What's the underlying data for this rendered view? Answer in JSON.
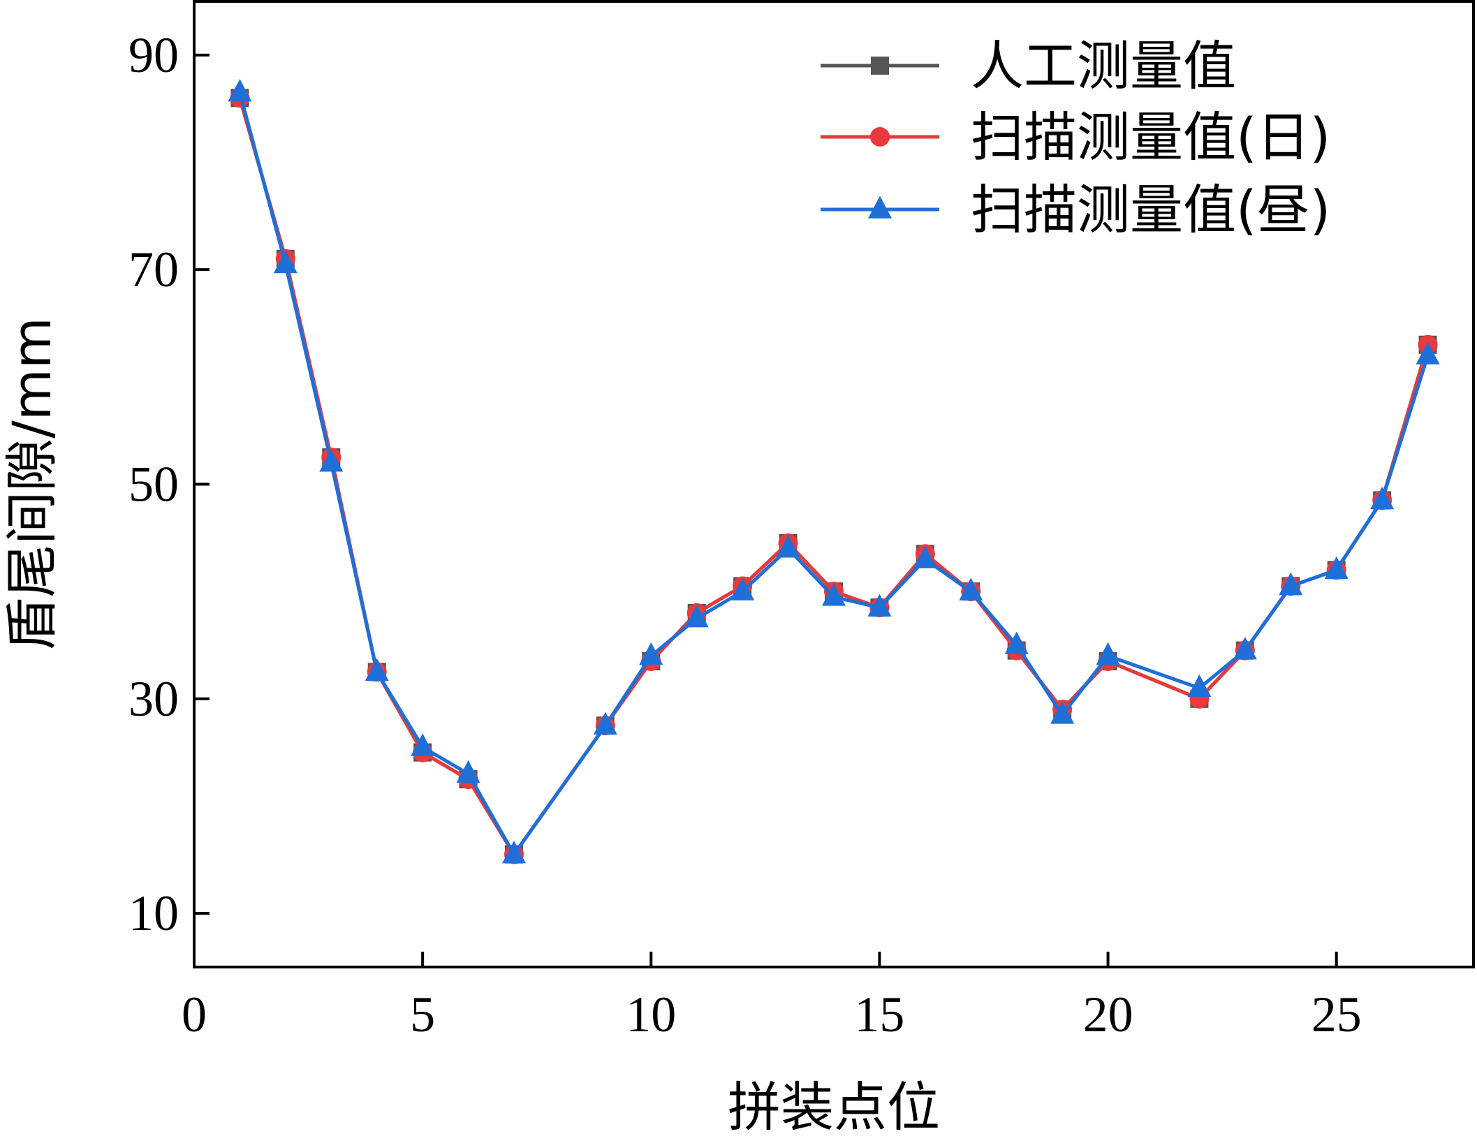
{
  "chart_data": {
    "type": "line",
    "xlabel": "拼装点位",
    "ylabel": "盾尾间隙/mm",
    "xlim": [
      0,
      28
    ],
    "ylim": [
      5,
      95
    ],
    "xticks": [
      0,
      5,
      10,
      15,
      20,
      25
    ],
    "yticks": [
      10,
      30,
      50,
      70,
      90
    ],
    "grid": false,
    "legend_position": "top-right",
    "series": [
      {
        "name": "人工测量值",
        "color": "#555555",
        "marker": "square",
        "points": [
          [
            1,
            86
          ],
          [
            2,
            71
          ],
          [
            3,
            52.5
          ],
          [
            4,
            32.5
          ],
          [
            5,
            25
          ],
          [
            6,
            22.5
          ],
          [
            7,
            15.5
          ],
          [
            9,
            27.5
          ],
          [
            10,
            33.5
          ],
          [
            11,
            38
          ],
          [
            12,
            40.5
          ],
          [
            13,
            44.5
          ],
          [
            14,
            40
          ],
          [
            15,
            38.5
          ],
          [
            16,
            43.5
          ],
          [
            17,
            40
          ],
          [
            18,
            34.5
          ],
          [
            19,
            29
          ],
          [
            20,
            33.5
          ],
          [
            22,
            30
          ],
          [
            23,
            34.5
          ],
          [
            24,
            40.5
          ],
          [
            25,
            42
          ],
          [
            26,
            48.5
          ],
          [
            27,
            63
          ]
        ]
      },
      {
        "name": "扫描测量值(日)",
        "color": "#e8393c",
        "marker": "circle",
        "points": [
          [
            1,
            86
          ],
          [
            2,
            71
          ],
          [
            3,
            52.5
          ],
          [
            4,
            32.5
          ],
          [
            5,
            25
          ],
          [
            6,
            22.5
          ],
          [
            7,
            15.5
          ],
          [
            9,
            27.5
          ],
          [
            10,
            33.5
          ],
          [
            11,
            38
          ],
          [
            12,
            40.5
          ],
          [
            13,
            44.5
          ],
          [
            14,
            40
          ],
          [
            15,
            38.5
          ],
          [
            16,
            43.5
          ],
          [
            17,
            40
          ],
          [
            18,
            34.5
          ],
          [
            19,
            29
          ],
          [
            20,
            33.5
          ],
          [
            22,
            30
          ],
          [
            23,
            34.5
          ],
          [
            24,
            40.5
          ],
          [
            25,
            42
          ],
          [
            26,
            48.5
          ],
          [
            27,
            63
          ]
        ]
      },
      {
        "name": "扫描测量值(昼)",
        "color": "#1f6fd8",
        "marker": "triangle",
        "points": [
          [
            1,
            86.5
          ],
          [
            2,
            70.5
          ],
          [
            3,
            52
          ],
          [
            4,
            32.5
          ],
          [
            5,
            25.5
          ],
          [
            6,
            23
          ],
          [
            7,
            15.5
          ],
          [
            9,
            27.5
          ],
          [
            10,
            34
          ],
          [
            11,
            37.5
          ],
          [
            12,
            40
          ],
          [
            13,
            44
          ],
          [
            14,
            39.5
          ],
          [
            15,
            38.5
          ],
          [
            16,
            43
          ],
          [
            17,
            40
          ],
          [
            18,
            35
          ],
          [
            19,
            28.5
          ],
          [
            20,
            34
          ],
          [
            22,
            31
          ],
          [
            23,
            34.5
          ],
          [
            24,
            40.5
          ],
          [
            25,
            42
          ],
          [
            26,
            48.5
          ],
          [
            27,
            62
          ]
        ]
      }
    ]
  }
}
